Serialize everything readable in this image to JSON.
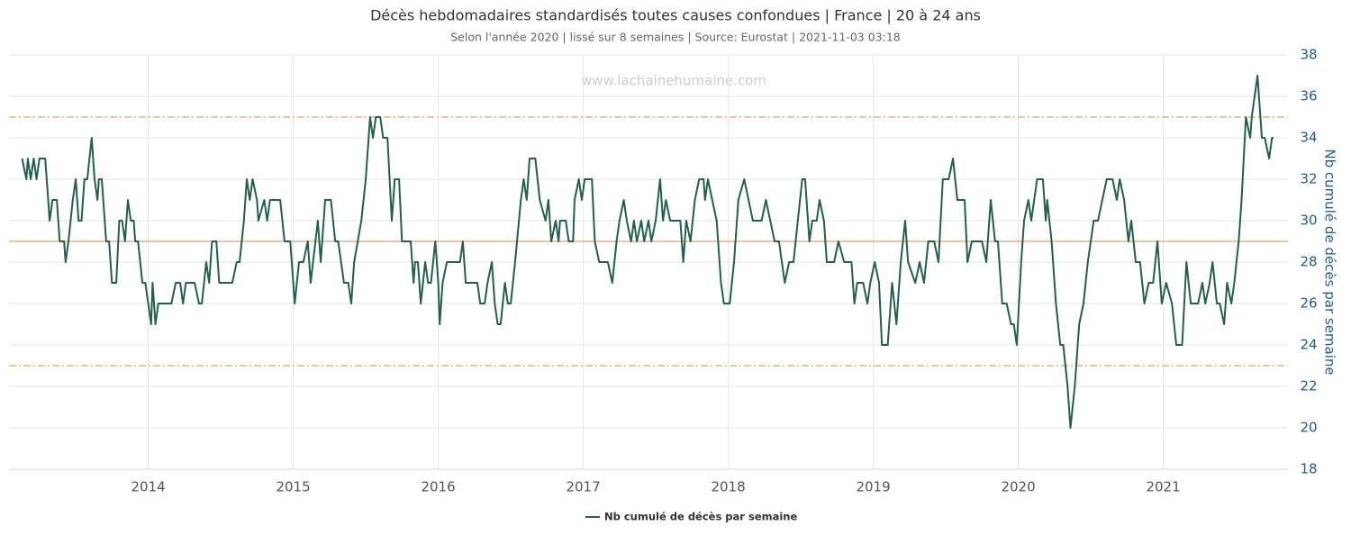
{
  "chart_data": {
    "type": "line",
    "title": "Décès hebdomadaires standardisés toutes causes confondues | France | 20 à 24 ans",
    "subtitle": "Selon l'année 2020 | lissé sur 8 semaines | Source: Eurostat | 2021-11-03 03:18",
    "watermark": "www.lachainehumaine.com",
    "y_label": "Nb cumulé de décès par semaine",
    "xlim": [
      2013.04,
      2021.86
    ],
    "xticks": [
      2014,
      2015,
      2016,
      2017,
      2018,
      2019,
      2020,
      2021
    ],
    "ylim": [
      18,
      38
    ],
    "yticks": [
      18,
      20,
      22,
      24,
      26,
      28,
      30,
      32,
      34,
      36,
      38
    ],
    "grid": true,
    "legend": "bottom",
    "reference_lines": [
      {
        "value": 35,
        "style": "dashed",
        "color": "#e8a25c"
      },
      {
        "value": 29,
        "style": "solid",
        "color": "#e8a070"
      },
      {
        "value": 23,
        "style": "dashed",
        "color": "#e8a25c"
      }
    ],
    "x": [
      2013.13,
      2013.16,
      2013.17,
      2013.19,
      2013.21,
      2013.23,
      2013.25,
      2013.29,
      2013.31,
      2013.32,
      2013.34,
      2013.37,
      2013.39,
      2013.42,
      2013.43,
      2013.45,
      2013.48,
      2013.5,
      2013.52,
      2013.54,
      2013.56,
      2013.58,
      2013.61,
      2013.63,
      2013.65,
      2013.66,
      2013.68,
      2013.71,
      2013.73,
      2013.75,
      2013.78,
      2013.8,
      2013.82,
      2013.84,
      2013.86,
      2013.88,
      2013.9,
      2013.91,
      2013.93,
      2013.96,
      2013.98,
      2014.0,
      2014.02,
      2014.03,
      2014.05,
      2014.07,
      2014.1,
      2014.16,
      2014.19,
      2014.22,
      2014.24,
      2014.26,
      2014.32,
      2014.35,
      2014.37,
      2014.4,
      2014.42,
      2014.44,
      2014.47,
      2014.49,
      2014.53,
      2014.58,
      2014.61,
      2014.63,
      2014.66,
      2014.68,
      2014.7,
      2014.72,
      2014.75,
      2014.76,
      2014.8,
      2014.82,
      2014.84,
      2014.91,
      2014.94,
      2014.98,
      2015.0,
      2015.01,
      2015.04,
      2015.07,
      2015.1,
      2015.12,
      2015.17,
      2015.19,
      2015.22,
      2015.26,
      2015.29,
      2015.31,
      2015.33,
      2015.35,
      2015.38,
      2015.4,
      2015.42,
      2015.47,
      2015.5,
      2015.53,
      2015.55,
      2015.57,
      2015.6,
      2015.62,
      2015.65,
      2015.68,
      2015.7,
      2015.73,
      2015.75,
      2015.81,
      2015.83,
      2015.84,
      2015.86,
      2015.88,
      2015.91,
      2015.93,
      2015.95,
      2015.98,
      2016.0,
      2016.01,
      2016.03,
      2016.06,
      2016.15,
      2016.17,
      2016.19,
      2016.22,
      2016.27,
      2016.29,
      2016.32,
      2016.34,
      2016.37,
      2016.39,
      2016.41,
      2016.43,
      2016.46,
      2016.48,
      2016.5,
      2016.53,
      2016.57,
      2016.59,
      2016.61,
      2016.63,
      2016.67,
      2016.7,
      2016.74,
      2016.76,
      2016.78,
      2016.81,
      2016.83,
      2016.84,
      2016.88,
      2016.9,
      2016.93,
      2016.94,
      2016.97,
      2016.99,
      2017.01,
      2017.06,
      2017.08,
      2017.11,
      2017.17,
      2017.2,
      2017.23,
      2017.25,
      2017.28,
      2017.3,
      2017.33,
      2017.35,
      2017.37,
      2017.4,
      2017.42,
      2017.45,
      2017.47,
      2017.5,
      2017.53,
      2017.55,
      2017.57,
      2017.6,
      2017.64,
      2017.67,
      2017.69,
      2017.71,
      2017.74,
      2017.77,
      2017.8,
      2017.83,
      2017.84,
      2017.86,
      2017.89,
      2017.92,
      2017.95,
      2017.97,
      2018.01,
      2018.04,
      2018.07,
      2018.11,
      2018.14,
      2018.17,
      2018.23,
      2018.26,
      2018.29,
      2018.32,
      2018.35,
      2018.39,
      2018.42,
      2018.45,
      2018.48,
      2018.51,
      2018.53,
      2018.56,
      2018.58,
      2018.61,
      2018.63,
      2018.66,
      2018.68,
      2018.73,
      2018.76,
      2018.8,
      2018.85,
      2018.87,
      2018.89,
      2018.93,
      2018.96,
      2018.98,
      2019.01,
      2019.04,
      2019.06,
      2019.1,
      2019.13,
      2019.16,
      2019.19,
      2019.22,
      2019.24,
      2019.29,
      2019.32,
      2019.35,
      2019.38,
      2019.42,
      2019.45,
      2019.48,
      2019.52,
      2019.55,
      2019.58,
      2019.63,
      2019.65,
      2019.68,
      2019.75,
      2019.78,
      2019.81,
      2019.84,
      2019.86,
      2019.89,
      2019.92,
      2019.95,
      2019.97,
      2019.99,
      2020.02,
      2020.04,
      2020.07,
      2020.09,
      2020.13,
      2020.17,
      2020.19,
      2020.2,
      2020.23,
      2020.26,
      2020.29,
      2020.31,
      2020.34,
      2020.36,
      2020.39,
      2020.42,
      2020.45,
      2020.48,
      2020.52,
      2020.55,
      2020.58,
      2020.61,
      2020.65,
      2020.68,
      2020.7,
      2020.73,
      2020.76,
      2020.78,
      2020.81,
      2020.84,
      2020.87,
      2020.9,
      2020.93,
      2020.96,
      2020.99,
      2021.02,
      2021.06,
      2021.09,
      2021.13,
      2021.16,
      2021.19,
      2021.24,
      2021.27,
      2021.29,
      2021.32,
      2021.34,
      2021.37,
      2021.39,
      2021.42,
      2021.44,
      2021.47,
      2021.49,
      2021.52,
      2021.54,
      2021.57,
      2021.6,
      2021.61,
      2021.65,
      2021.68,
      2021.7,
      2021.73,
      2021.75,
      2021.76
    ],
    "series": [
      {
        "name": "Nb cumulé de décès par semaine",
        "color": "#21614a",
        "values": [
          33,
          32,
          33,
          32,
          33,
          32,
          33,
          33,
          31,
          30,
          31,
          31,
          29,
          29,
          28,
          29,
          31,
          32,
          30,
          30,
          32,
          32,
          34,
          32,
          31,
          32,
          32,
          29,
          29,
          27,
          27,
          30,
          30,
          29,
          31,
          30,
          30,
          29,
          29,
          27,
          27,
          26,
          25,
          27,
          25,
          26,
          26,
          26,
          27,
          27,
          26,
          27,
          27,
          26,
          26,
          28,
          27,
          29,
          29,
          27,
          27,
          27,
          28,
          28,
          30,
          32,
          31,
          32,
          31,
          30,
          31,
          30,
          31,
          31,
          29,
          29,
          27,
          26,
          28,
          28,
          29,
          27,
          30,
          28,
          31,
          31,
          29,
          29,
          28,
          27,
          27,
          26,
          28,
          30,
          32,
          35,
          34,
          35,
          35,
          34,
          34,
          30,
          32,
          32,
          29,
          29,
          27,
          28,
          28,
          26,
          28,
          27,
          27,
          29,
          27,
          25,
          27,
          28,
          28,
          29,
          27,
          27,
          27,
          26,
          26,
          27,
          28,
          26,
          25,
          25,
          27,
          26,
          26,
          28,
          31,
          32,
          31,
          33,
          33,
          31,
          30,
          31,
          29,
          30,
          29,
          30,
          30,
          29,
          29,
          31,
          32,
          31,
          32,
          32,
          29,
          28,
          28,
          27,
          29,
          30,
          31,
          30,
          29,
          30,
          29,
          30,
          29,
          30,
          29,
          30,
          32,
          30,
          31,
          30,
          30,
          30,
          28,
          30,
          29,
          31,
          32,
          32,
          31,
          32,
          31,
          30,
          27,
          26,
          26,
          28,
          31,
          32,
          31,
          30,
          30,
          31,
          30,
          29,
          29,
          27,
          28,
          28,
          30,
          32,
          32,
          29,
          30,
          30,
          31,
          30,
          28,
          28,
          29,
          28,
          28,
          26,
          27,
          27,
          26,
          27,
          28,
          27,
          24,
          24,
          27,
          25,
          28,
          30,
          28,
          27,
          28,
          27,
          29,
          29,
          28,
          32,
          32,
          33,
          31,
          31,
          28,
          29,
          29,
          28,
          31,
          29,
          29,
          26,
          26,
          25,
          25,
          24,
          28,
          30,
          31,
          30,
          32,
          32,
          30,
          31,
          29,
          26,
          24,
          24,
          22,
          20,
          22,
          25,
          26,
          28,
          30,
          30,
          31,
          32,
          32,
          31,
          32,
          31,
          29,
          30,
          28,
          28,
          26,
          27,
          27,
          29,
          26,
          27,
          26,
          24,
          24,
          28,
          26,
          26,
          27,
          26,
          27,
          28,
          26,
          26,
          25,
          27,
          26,
          27,
          29,
          31,
          35,
          34,
          35,
          37,
          34,
          34,
          33,
          34,
          34
        ]
      }
    ]
  }
}
